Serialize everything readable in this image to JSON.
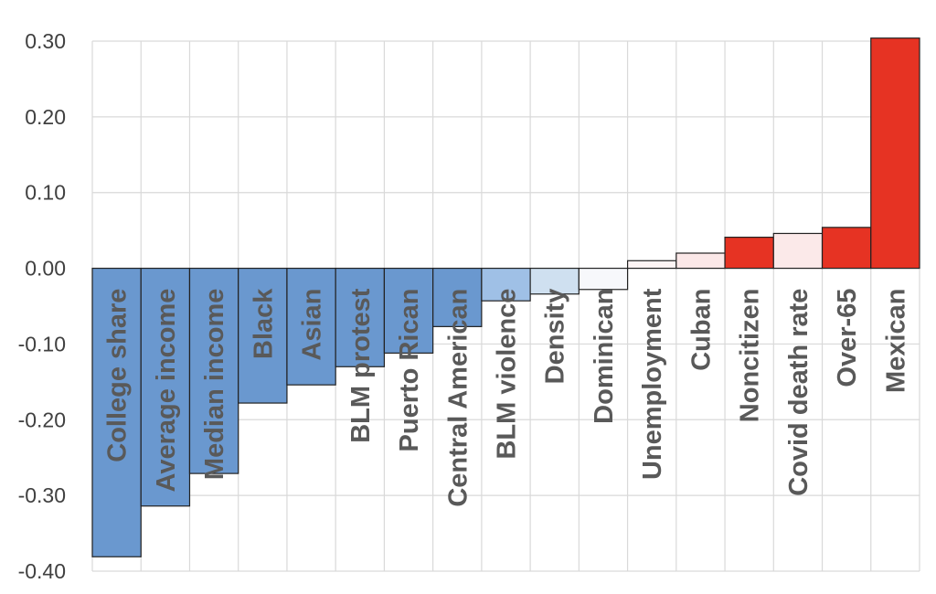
{
  "chart_data": {
    "type": "bar",
    "title": "",
    "xlabel": "",
    "ylabel": "",
    "ylim": [
      -0.4,
      0.3
    ],
    "yticks": [
      "0.30",
      "0.20",
      "0.10",
      "0.00",
      "-0.10",
      "-0.20",
      "-0.30",
      "-0.40"
    ],
    "ytick_values": [
      0.3,
      0.2,
      0.1,
      0.0,
      -0.1,
      -0.2,
      -0.3,
      -0.4
    ],
    "grid": true,
    "legend": "none",
    "categories": [
      "College share",
      "Average income",
      "Median income",
      "Black",
      "Asian",
      "BLM protest",
      "Puerto Rican",
      "Central American",
      "BLM violence",
      "Density",
      "Dominican",
      "Unemployment",
      "Cuban",
      "Noncitizen",
      "Covid death rate",
      "Over-65",
      "Mexican"
    ],
    "values": [
      -0.381,
      -0.314,
      -0.271,
      -0.178,
      -0.154,
      -0.13,
      -0.112,
      -0.077,
      -0.043,
      -0.034,
      -0.028,
      0.01,
      0.02,
      0.041,
      0.046,
      0.054,
      0.304
    ],
    "colors": [
      "#6a98cf",
      "#6a98cf",
      "#6a98cf",
      "#6a98cf",
      "#6a98cf",
      "#6a98cf",
      "#6a98cf",
      "#6a98cf",
      "#9fc0e6",
      "#cfe0f0",
      "#f7f8fb",
      "#fdf4f4",
      "#fbe8e8",
      "#e63323",
      "#fbe9e9",
      "#e63323",
      "#e63323"
    ]
  }
}
